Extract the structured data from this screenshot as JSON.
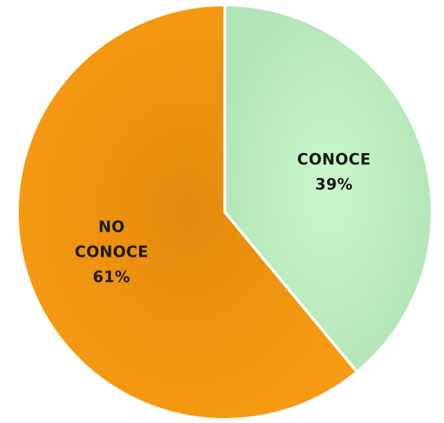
{
  "chart_data": {
    "type": "pie",
    "title": "",
    "slices": [
      {
        "label_lines": [
          "CONOCE"
        ],
        "percent_text": "39%",
        "value": 39,
        "color": "#bdf0c2"
      },
      {
        "label_lines": [
          "NO",
          "CONOCE"
        ],
        "percent_text": "61%",
        "value": 61,
        "color": "#f59a10"
      }
    ],
    "start_angle_deg": 0,
    "direction": "clockwise",
    "legend": "none",
    "data_labels": "inside"
  }
}
